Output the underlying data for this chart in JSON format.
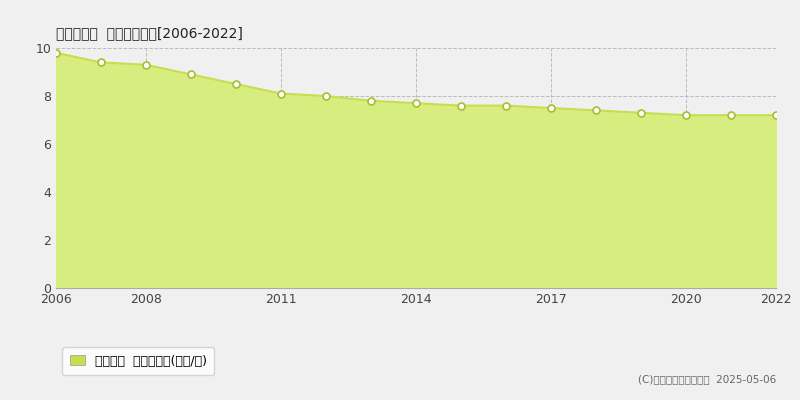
{
  "title": "加東市新町  基準地価推移[2006-2022]",
  "years": [
    2006,
    2007,
    2008,
    2009,
    2010,
    2011,
    2012,
    2013,
    2014,
    2015,
    2016,
    2017,
    2018,
    2019,
    2020,
    2021,
    2022
  ],
  "values": [
    9.8,
    9.4,
    9.3,
    8.9,
    8.5,
    8.1,
    8.0,
    7.8,
    7.7,
    7.6,
    7.6,
    7.5,
    7.4,
    7.3,
    7.2,
    7.2,
    7.2
  ],
  "ylim": [
    0,
    10
  ],
  "yticks": [
    0,
    2,
    4,
    6,
    8,
    10
  ],
  "xticks": [
    2006,
    2008,
    2011,
    2014,
    2017,
    2020,
    2022
  ],
  "line_color": "#c8de50",
  "fill_color": "#d8ed80",
  "marker_face_color": "white",
  "marker_edge_color": "#a8be30",
  "background_color": "#f0f0f0",
  "plot_bg_color": "#f0f0f0",
  "grid_color": "#bbbbbb",
  "legend_label": "基準地価  平均坪単価(万円/坪)",
  "legend_color": "#c8de50",
  "copyright": "(C)土地価格ドットコム  2025-05-06",
  "title_fontsize": 13,
  "tick_fontsize": 9,
  "legend_fontsize": 9,
  "copyright_fontsize": 7.5
}
